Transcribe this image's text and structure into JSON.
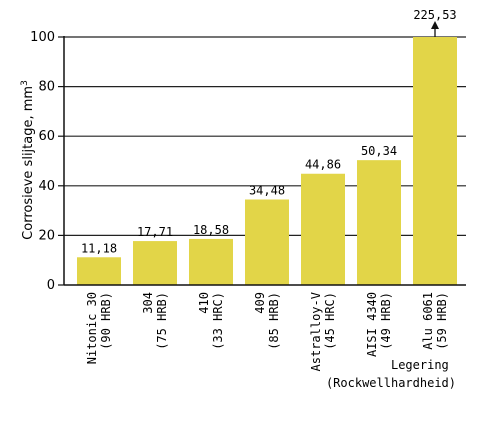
{
  "chart_data": {
    "type": "bar",
    "title": "",
    "ylabel": "Corrosieve slijtage, mm³",
    "xlabel": [
      "Legering",
      "(Rockwellhardheid)"
    ],
    "ylim": [
      0,
      100
    ],
    "yticks": [
      0,
      20,
      40,
      60,
      80,
      100
    ],
    "grid": "horizontal",
    "bar_color": "#e2d548",
    "categories": [
      [
        "Nitonic 30",
        "(90 HRB)"
      ],
      [
        "304",
        "(75 HRB)"
      ],
      [
        "410",
        "(33 HRC)"
      ],
      [
        "409",
        "(85 HRB)"
      ],
      [
        "Astralloy-V",
        "(45 HRC)"
      ],
      [
        "AISI 4340",
        "(49 HRB)"
      ],
      [
        "Alu 6061",
        "(59 HRB)"
      ]
    ],
    "values": [
      11.18,
      17.71,
      18.58,
      34.48,
      44.86,
      50.34,
      225.53
    ],
    "value_labels": [
      "11,18",
      "17,71",
      "18,58",
      "34,48",
      "44,86",
      "50,34",
      "225,53"
    ],
    "clipped_at_axis_max": [
      false,
      false,
      false,
      false,
      false,
      false,
      true
    ]
  }
}
